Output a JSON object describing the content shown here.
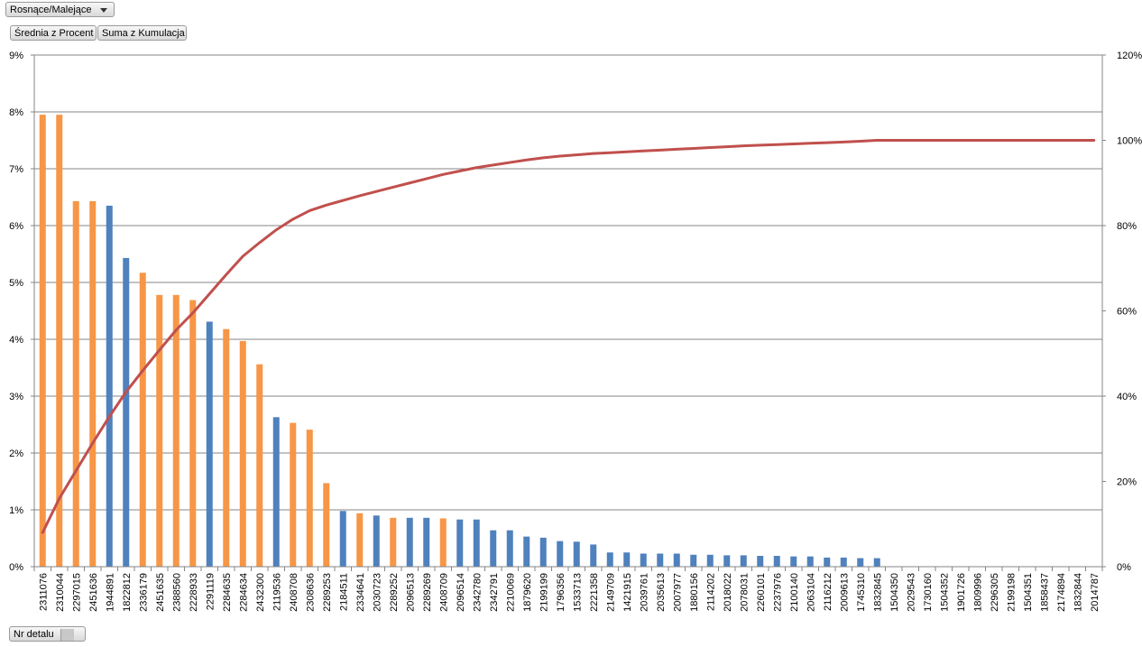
{
  "filters": {
    "sort_label": "Rosnące/Malejące",
    "value_buttons": [
      "Średnia z Procent",
      "Suma z Kumulacja"
    ],
    "axis_field_label": "Nr detalu"
  },
  "chart_data": {
    "type": "bar",
    "title": "",
    "xlabel": "",
    "ylabel": "",
    "ylim": [
      0,
      9
    ],
    "y2lim": [
      0,
      120
    ],
    "y_ticks": [
      "0%",
      "1%",
      "2%",
      "3%",
      "4%",
      "5%",
      "6%",
      "7%",
      "8%",
      "9%"
    ],
    "y2_ticks": [
      "0%",
      "20%",
      "40%",
      "60%",
      "80%",
      "100%",
      "120%"
    ],
    "grid": true,
    "colors": {
      "orange": "#f79646",
      "blue": "#4f81bd",
      "line": "#c0504d"
    },
    "categories": [
      "2311076",
      "2310044",
      "2297015",
      "2451636",
      "1944891",
      "1822812",
      "2336179",
      "2451635",
      "2388560",
      "2228933",
      "2291119",
      "2284635",
      "2284634",
      "2432300",
      "2119536",
      "2408708",
      "2308636",
      "2289253",
      "2184511",
      "2334641",
      "2030723",
      "2289252",
      "2096513",
      "2289269",
      "2408709",
      "2096514",
      "2342780",
      "2342791",
      "2210069",
      "1879620",
      "2199199",
      "1796356",
      "1533713",
      "2221358",
      "2149709",
      "1421915",
      "2039761",
      "2035613",
      "2007977",
      "1880156",
      "2114202",
      "2018022",
      "2078031",
      "2260101",
      "2237976",
      "2100140",
      "2063104",
      "2116212",
      "2009613",
      "1745310",
      "1832845",
      "1504350",
      "2029543",
      "1730160",
      "1504352",
      "1901726",
      "1809996",
      "2296305",
      "2199198",
      "1504351",
      "1858437",
      "2174894",
      "1832844",
      "2014787"
    ],
    "series": [
      {
        "name": "",
        "type": "bar",
        "axis": "left",
        "values": [
          7.95,
          7.95,
          6.43,
          6.43,
          6.35,
          5.43,
          5.17,
          4.78,
          4.78,
          4.69,
          4.31,
          4.18,
          3.97,
          3.56,
          2.63,
          2.53,
          2.41,
          1.47,
          0.98,
          0.94,
          0.9,
          0.86,
          0.86,
          0.86,
          0.85,
          0.83,
          0.83,
          0.64,
          0.64,
          0.53,
          0.51,
          0.45,
          0.44,
          0.39,
          0.25,
          0.25,
          0.23,
          0.23,
          0.23,
          0.21,
          0.21,
          0.2,
          0.2,
          0.19,
          0.19,
          0.18,
          0.18,
          0.16,
          0.16,
          0.15,
          0.15,
          0,
          0,
          0,
          0,
          0,
          0,
          0,
          0,
          0,
          0,
          0,
          0,
          0
        ],
        "bar_colors": [
          "orange",
          "orange",
          "orange",
          "orange",
          "blue",
          "blue",
          "orange",
          "orange",
          "orange",
          "orange",
          "blue",
          "orange",
          "orange",
          "orange",
          "blue",
          "orange",
          "orange",
          "orange",
          "blue",
          "orange",
          "blue",
          "orange",
          "blue",
          "blue",
          "orange",
          "blue",
          "blue",
          "blue",
          "blue",
          "blue",
          "blue",
          "blue",
          "blue",
          "blue",
          "blue",
          "blue",
          "blue",
          "blue",
          "blue",
          "blue",
          "blue",
          "blue",
          "blue",
          "blue",
          "blue",
          "blue",
          "blue",
          "blue",
          "blue",
          "blue",
          "blue",
          "blue",
          "blue",
          "blue",
          "blue",
          "blue",
          "blue",
          "blue",
          "blue",
          "blue",
          "blue",
          "blue",
          "blue",
          "blue"
        ]
      },
      {
        "name": "",
        "type": "line",
        "axis": "right",
        "values": [
          8,
          16,
          22.5,
          29,
          35.2,
          41,
          46,
          50.8,
          55.5,
          59.5,
          64,
          68.5,
          72.8,
          76,
          79,
          81.5,
          83.5,
          84.8,
          85.9,
          87,
          88,
          89,
          90,
          91,
          92,
          92.8,
          93.6,
          94.2,
          94.8,
          95.4,
          95.9,
          96.3,
          96.6,
          96.9,
          97.1,
          97.3,
          97.5,
          97.7,
          97.9,
          98.1,
          98.3,
          98.5,
          98.7,
          98.85,
          99,
          99.15,
          99.3,
          99.45,
          99.6,
          99.8,
          100,
          100,
          100,
          100,
          100,
          100,
          100,
          100,
          100,
          100,
          100,
          100,
          100,
          100
        ]
      }
    ]
  }
}
